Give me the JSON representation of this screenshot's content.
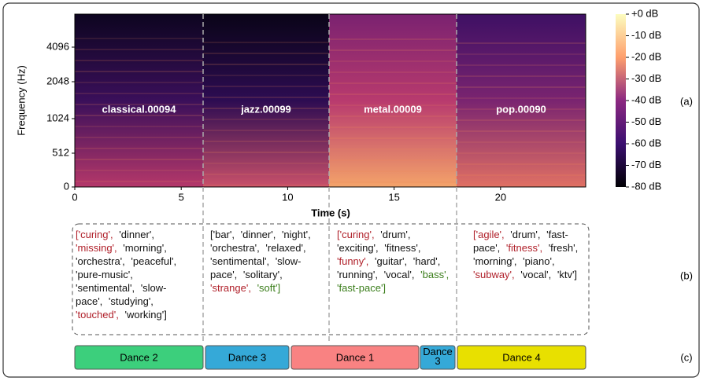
{
  "figure": {
    "y_label": "Frequency (Hz)",
    "x_label": "Time (s)",
    "xticks": [
      0,
      5,
      10,
      15,
      20
    ],
    "xlim": [
      0,
      24
    ],
    "yticks": [
      "0",
      "512",
      "1024",
      "2048",
      "4096"
    ],
    "colorbar": [
      "+0 dB",
      "-10 dB",
      "-20 dB",
      "-30 dB",
      "-40 dB",
      "-50 dB",
      "-60 dB",
      "-70 dB",
      "-80 dB"
    ],
    "clips": [
      "classical.00094",
      "jazz.00099",
      "metal.00009",
      "pop.00090"
    ],
    "panel_labels": [
      "(a)",
      "(b)",
      "(c)"
    ],
    "tag_lists": [
      [
        {
          "text": "['curing',",
          "color": "#b0202a"
        },
        {
          "text": "'dinner',"
        },
        {
          "text": "'missing',",
          "color": "#b0202a"
        },
        {
          "text": "'morning',"
        },
        {
          "text": "'orchestra',"
        },
        {
          "text": "'peaceful',"
        },
        {
          "text": "'pure-music',"
        },
        {
          "text": "'sentimental',"
        },
        {
          "text": "'slow-pace',"
        },
        {
          "text": "'studying',"
        },
        {
          "text": "'touched',",
          "color": "#b0202a"
        },
        {
          "text": "'working']"
        }
      ],
      [
        {
          "text": "['bar',"
        },
        {
          "text": "'dinner',"
        },
        {
          "text": "'night',"
        },
        {
          "text": "'orchestra',"
        },
        {
          "text": "'relaxed',"
        },
        {
          "text": "'sentimental',"
        },
        {
          "text": "'slow-pace',"
        },
        {
          "text": "'solitary',"
        },
        {
          "text": "'strange',",
          "color": "#b0202a"
        },
        {
          "text": "'soft']",
          "color": "#3a7d1a"
        }
      ],
      [
        {
          "text": "['curing',",
          "color": "#b0202a"
        },
        {
          "text": "'drum',"
        },
        {
          "text": "'exciting',"
        },
        {
          "text": "'fitness',"
        },
        {
          "text": "'funny',",
          "color": "#b0202a"
        },
        {
          "text": "'guitar',"
        },
        {
          "text": "'hard',"
        },
        {
          "text": "'running',"
        },
        {
          "text": "'vocal',"
        },
        {
          "text": "'bass',",
          "color": "#3a7d1a"
        },
        {
          "text": "'fast-pace']",
          "color": "#3a7d1a"
        }
      ],
      [
        {
          "text": "['agile',",
          "color": "#b0202a"
        },
        {
          "text": "'drum',"
        },
        {
          "text": "'fast-pace',"
        },
        {
          "text": "'fitness',",
          "color": "#b0202a"
        },
        {
          "text": "'fresh',"
        },
        {
          "text": "'morning',"
        },
        {
          "text": "'piano',"
        },
        {
          "text": "'subway',",
          "color": "#b0202a"
        },
        {
          "text": "'vocal',"
        },
        {
          "text": "'ktv']"
        }
      ]
    ],
    "dances": [
      {
        "label": "Dance 2",
        "color": "#3ccf7c"
      },
      {
        "label": "Dance 3",
        "color": "#35a9d8"
      },
      {
        "label": "Dance 1",
        "color": "#f98282"
      },
      {
        "label": "Dance 3",
        "color": "#35a9d8"
      },
      {
        "label": "Dance 4",
        "color": "#e8e000"
      }
    ]
  }
}
